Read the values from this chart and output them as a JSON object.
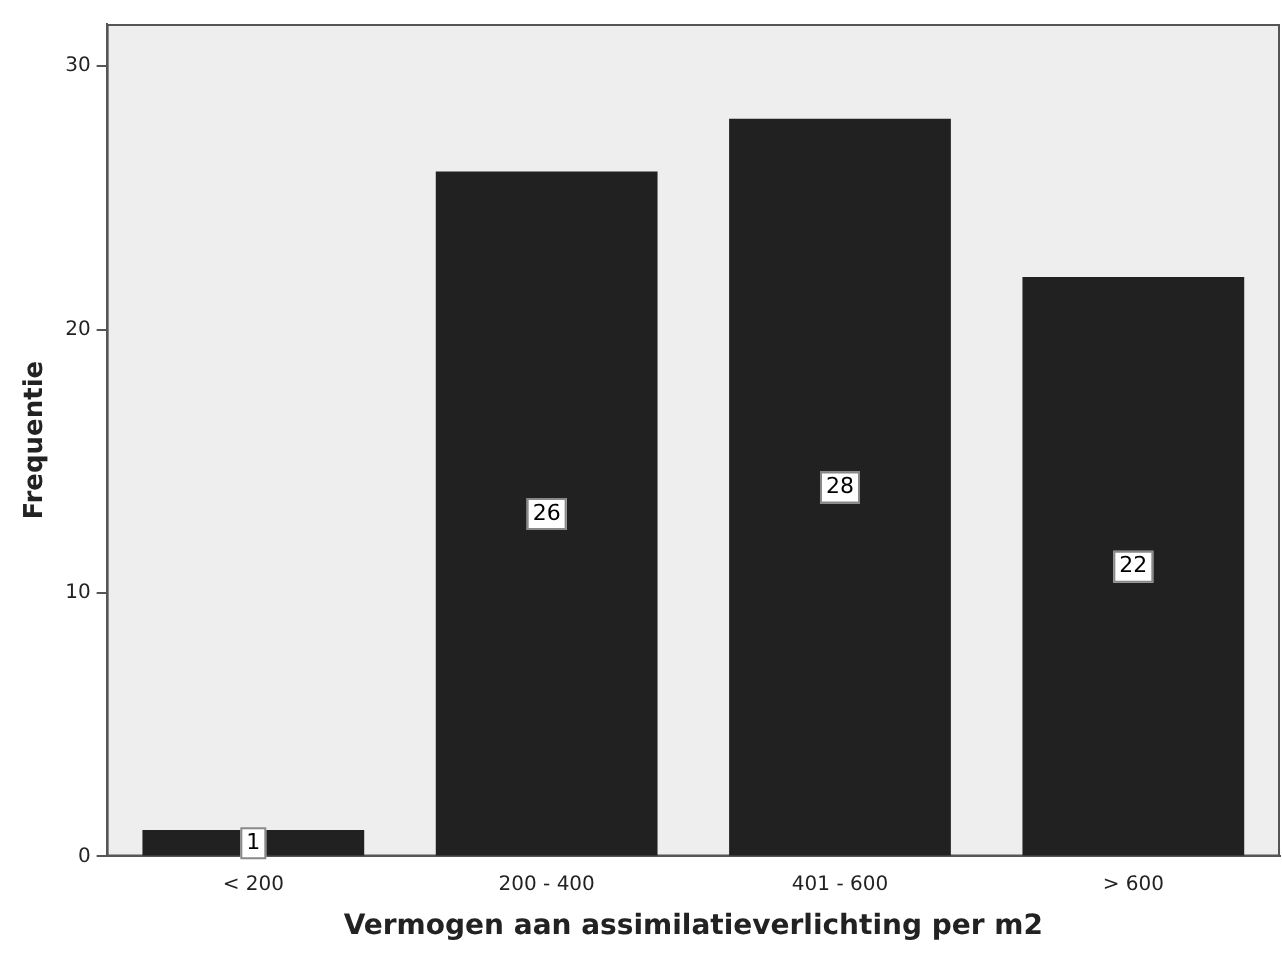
{
  "chart_data": {
    "type": "bar",
    "xlabel": "Vermogen aan assimilatieverlichting per m2",
    "ylabel": "Frequentie",
    "categories": [
      "< 200",
      "200 - 400",
      "401 - 600",
      "> 600"
    ],
    "values": [
      1,
      26,
      28,
      22
    ],
    "color": "#212121",
    "ylim": [
      0,
      31.6
    ],
    "yticks": [
      0,
      10,
      20,
      30
    ],
    "grid": false,
    "legend": false,
    "data_labels": true
  }
}
